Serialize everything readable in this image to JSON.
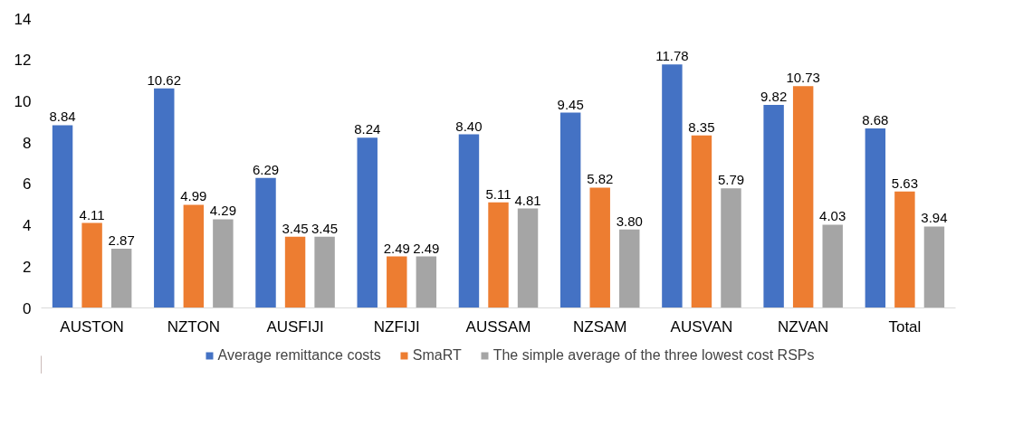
{
  "chart_data": {
    "type": "bar",
    "categories": [
      "AUSTON",
      "NZTON",
      "AUSFIJI",
      "NZFIJI",
      "AUSSAM",
      "NZSAM",
      "AUSVAN",
      "NZVAN",
      "Total"
    ],
    "series": [
      {
        "name": "Average remittance costs",
        "color": "#4472c4",
        "values": [
          8.84,
          10.62,
          6.29,
          8.24,
          8.4,
          9.45,
          11.78,
          9.82,
          8.68
        ],
        "value_labels": [
          "8.84",
          "10.62",
          "6.29",
          "8.24",
          "8.40",
          "9.45",
          "11.78",
          "9.82",
          "8.68"
        ]
      },
      {
        "name": "SmaRT",
        "color": "#ed7d31",
        "values": [
          4.11,
          4.99,
          3.45,
          2.49,
          5.11,
          5.82,
          8.35,
          10.73,
          5.63
        ],
        "value_labels": [
          "4.11",
          "4.99",
          "3.45",
          "2.49",
          "5.11",
          "5.82",
          "8.35",
          "10.73",
          "5.63"
        ]
      },
      {
        "name": "The simple average of the three lowest cost RSPs",
        "color": "#a5a5a5",
        "values": [
          2.87,
          4.29,
          3.45,
          2.49,
          4.81,
          3.8,
          5.79,
          4.03,
          3.94
        ],
        "value_labels": [
          "2.87",
          "4.29",
          "3.45",
          "2.49",
          "4.81",
          "3.80",
          "5.79",
          "4.03",
          "3.94"
        ]
      }
    ],
    "ylim": [
      0,
      14
    ],
    "yticks": [
      0,
      2,
      4,
      6,
      8,
      10,
      12,
      14
    ],
    "legend": "bottom"
  }
}
